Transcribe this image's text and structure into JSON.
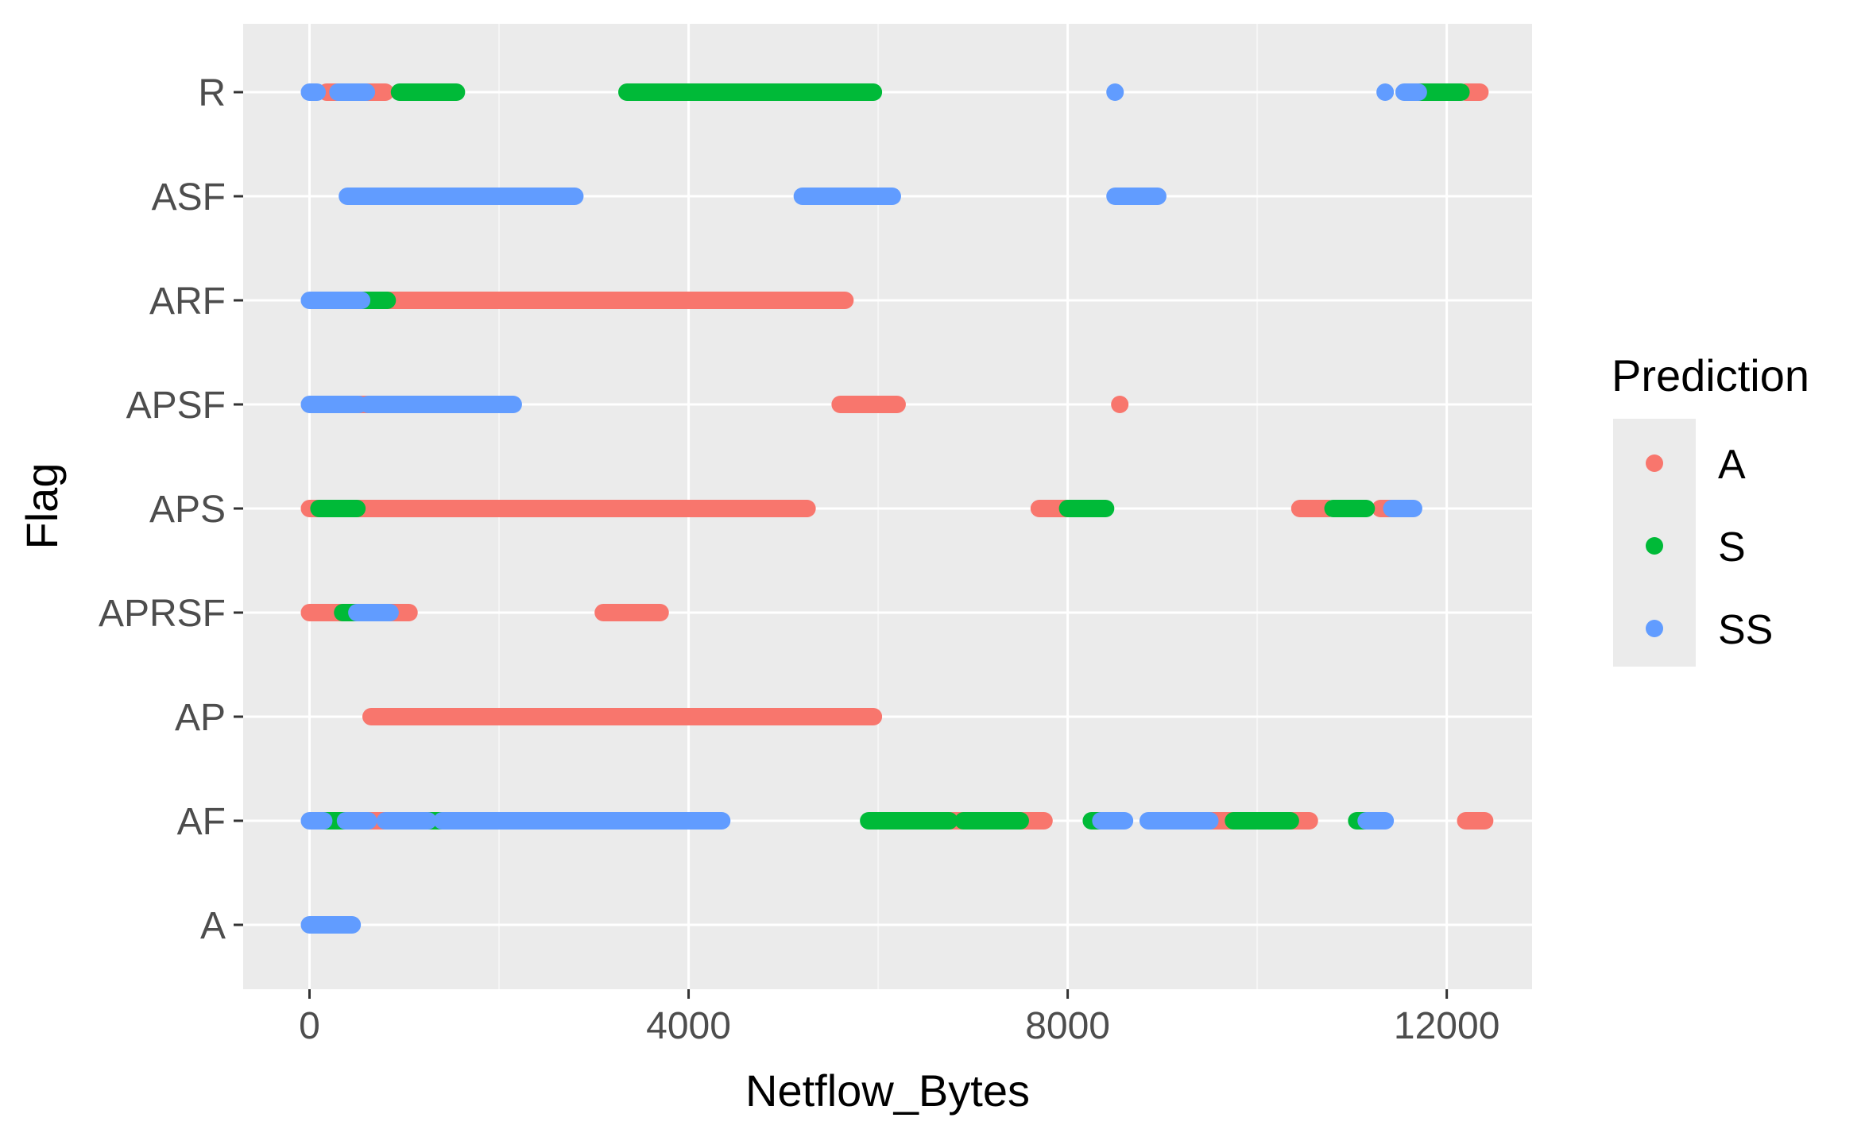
{
  "chart_data": {
    "type": "scatter",
    "title": "",
    "xlabel": "Netflow_Bytes",
    "ylabel": "Flag",
    "xlim": [
      -700,
      12900
    ],
    "x_ticks": [
      0,
      4000,
      8000,
      12000
    ],
    "x_tick_labels": [
      "0",
      "4000",
      "8000",
      "12000"
    ],
    "categories": [
      "A",
      "AF",
      "AP",
      "APRSF",
      "APS",
      "APSF",
      "ARF",
      "ASF",
      "R"
    ],
    "grid": true,
    "panel_background": "#ebebeb",
    "legend": {
      "title": "Prediction",
      "position": "right",
      "entries": [
        {
          "label": "A",
          "color": "#F8766D"
        },
        {
          "label": "S",
          "color": "#00BA38"
        },
        {
          "label": "SS",
          "color": "#619CFF"
        }
      ]
    },
    "series": [
      {
        "name": "A",
        "color": "#F8766D",
        "segments": [
          {
            "flag": "R",
            "x_range": [
              180,
              800
            ]
          },
          {
            "flag": "APS",
            "x_range": [
              0,
              5250
            ]
          },
          {
            "flag": "APS",
            "x_range": [
              7700,
              8000
            ]
          },
          {
            "flag": "APS",
            "x_range": [
              10450,
              10750
            ]
          },
          {
            "flag": "APS",
            "x_range": [
              11300,
              11420
            ]
          },
          {
            "flag": "APSF",
            "x_range": [
              520,
              620
            ]
          },
          {
            "flag": "APSF",
            "x_range": [
              5600,
              6200
            ]
          },
          {
            "flag": "APRSF",
            "x_range": [
              0,
              1050
            ]
          },
          {
            "flag": "APRSF",
            "x_range": [
              3100,
              3700
            ]
          },
          {
            "flag": "ARF",
            "x_range": [
              800,
              5650
            ]
          },
          {
            "flag": "AP",
            "x_range": [
              650,
              5950
            ]
          },
          {
            "flag": "AF",
            "x_range": [
              620,
              800
            ]
          },
          {
            "flag": "AF",
            "x_range": [
              6750,
              6900
            ]
          },
          {
            "flag": "AF",
            "x_range": [
              7500,
              7750
            ]
          },
          {
            "flag": "AF",
            "x_range": [
              9500,
              9750
            ]
          },
          {
            "flag": "AF",
            "x_range": [
              10350,
              10550
            ]
          },
          {
            "flag": "AF",
            "x_range": [
              12200,
              12400
            ]
          },
          {
            "flag": "R",
            "x_range": [
              12200,
              12350
            ]
          }
        ],
        "points": [
          {
            "flag": "APSF",
            "x": 8550
          }
        ]
      },
      {
        "name": "S",
        "color": "#00BA38",
        "segments": [
          {
            "flag": "R",
            "x_range": [
              950,
              1550
            ]
          },
          {
            "flag": "R",
            "x_range": [
              3350,
              5950
            ]
          },
          {
            "flag": "R",
            "x_range": [
              11700,
              12150
            ]
          },
          {
            "flag": "ARF",
            "x_range": [
              550,
              820
            ]
          },
          {
            "flag": "APS",
            "x_range": [
              100,
              500
            ]
          },
          {
            "flag": "APS",
            "x_range": [
              8000,
              8400
            ]
          },
          {
            "flag": "APS",
            "x_range": [
              10800,
              11150
            ]
          },
          {
            "flag": "APRSF",
            "x_range": [
              350,
              500
            ]
          },
          {
            "flag": "AF",
            "x_range": [
              150,
              380
            ]
          },
          {
            "flag": "AF",
            "x_range": [
              1250,
              1400
            ]
          },
          {
            "flag": "AF",
            "x_range": [
              5900,
              6750
            ]
          },
          {
            "flag": "AF",
            "x_range": [
              6900,
              7500
            ]
          },
          {
            "flag": "AF",
            "x_range": [
              8250,
              8350
            ]
          },
          {
            "flag": "AF",
            "x_range": [
              9750,
              10350
            ]
          },
          {
            "flag": "AF",
            "x_range": [
              11050,
              11150
            ]
          }
        ],
        "points": []
      },
      {
        "name": "SS",
        "color": "#619CFF",
        "segments": [
          {
            "flag": "R",
            "x_range": [
              0,
              80
            ]
          },
          {
            "flag": "R",
            "x_range": [
              300,
              600
            ]
          },
          {
            "flag": "R",
            "x_range": [
              11550,
              11700
            ]
          },
          {
            "flag": "ASF",
            "x_range": [
              400,
              2800
            ]
          },
          {
            "flag": "ASF",
            "x_range": [
              5200,
              6150
            ]
          },
          {
            "flag": "ASF",
            "x_range": [
              8500,
              8950
            ]
          },
          {
            "flag": "ARF",
            "x_range": [
              0,
              550
            ]
          },
          {
            "flag": "APSF",
            "x_range": [
              0,
              520
            ]
          },
          {
            "flag": "APSF",
            "x_range": [
              620,
              2150
            ]
          },
          {
            "flag": "APS",
            "x_range": [
              11420,
              11650
            ]
          },
          {
            "flag": "APRSF",
            "x_range": [
              500,
              850
            ]
          },
          {
            "flag": "AF",
            "x_range": [
              0,
              150
            ]
          },
          {
            "flag": "AF",
            "x_range": [
              380,
              620
            ]
          },
          {
            "flag": "AF",
            "x_range": [
              800,
              1250
            ]
          },
          {
            "flag": "AF",
            "x_range": [
              1400,
              4350
            ]
          },
          {
            "flag": "AF",
            "x_range": [
              8350,
              8600
            ]
          },
          {
            "flag": "AF",
            "x_range": [
              8850,
              9500
            ]
          },
          {
            "flag": "AF",
            "x_range": [
              11150,
              11350
            ]
          },
          {
            "flag": "A",
            "x_range": [
              0,
              450
            ]
          }
        ],
        "points": [
          {
            "flag": "R",
            "x": 8500
          },
          {
            "flag": "R",
            "x": 11350
          }
        ]
      }
    ]
  }
}
